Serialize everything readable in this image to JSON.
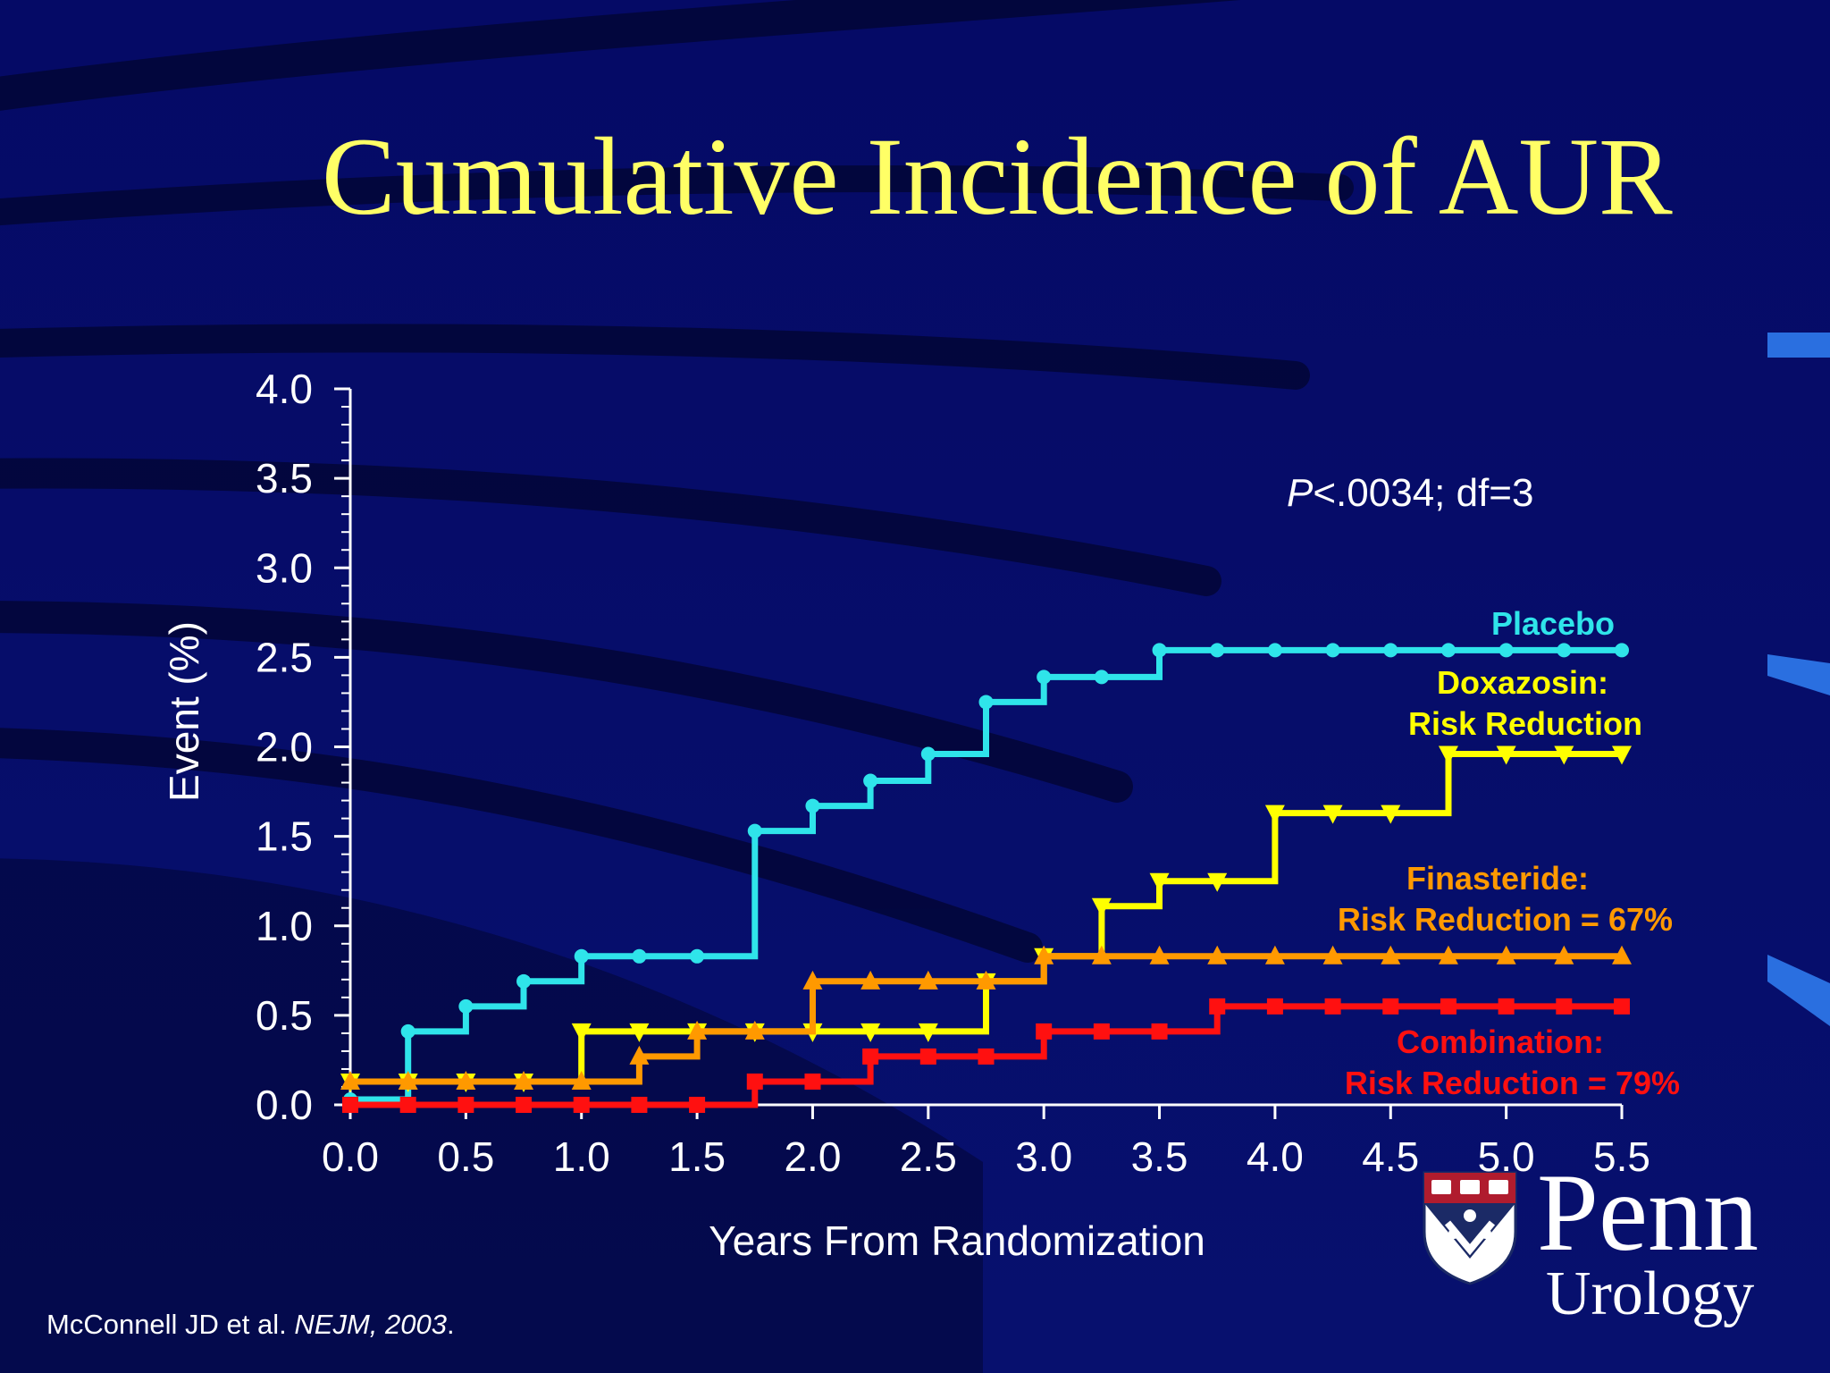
{
  "slide": {
    "title": "Cumulative Incidence of AUR",
    "citation_authors": "McConnell JD et al. ",
    "citation_journal": "NEJM, 2003",
    "citation_end": ".",
    "logo_word": "Penn",
    "logo_sub": "Urology"
  },
  "colors": {
    "background": "#05085e",
    "title": "#ffff66",
    "axis": "#ffffff",
    "placebo": "#2fe4ea",
    "doxazosin": "#ffff00",
    "finasteride": "#ff9900",
    "combination": "#ff1010"
  },
  "chart_data": {
    "type": "line",
    "step": true,
    "xlabel": "Years From Randomization",
    "ylabel": "Event (%)",
    "xlim": [
      0,
      5.5
    ],
    "ylim": [
      0,
      4.0
    ],
    "x_ticks": [
      "0.0",
      "0.5",
      "1.0",
      "1.5",
      "2.0",
      "2.5",
      "3.0",
      "3.5",
      "4.0",
      "4.5",
      "5.0",
      "5.5"
    ],
    "y_ticks": [
      "0.0",
      "0.5",
      "1.0",
      "1.5",
      "2.0",
      "2.5",
      "3.0",
      "3.5",
      "4.0"
    ],
    "annotation_p_symbol": "P",
    "annotation_p_rest": "<.0034; df=3",
    "grid": false,
    "series": [
      {
        "key": "placebo",
        "label_lines": [
          "Placebo"
        ],
        "marker": "circle",
        "color": "#2fe4ea",
        "points": [
          [
            0,
            0.03
          ],
          [
            0.25,
            0.03
          ],
          [
            0.25,
            0.41
          ],
          [
            0.5,
            0.41
          ],
          [
            0.5,
            0.55
          ],
          [
            0.75,
            0.55
          ],
          [
            0.75,
            0.69
          ],
          [
            1.0,
            0.69
          ],
          [
            1.0,
            0.83
          ],
          [
            1.25,
            0.83
          ],
          [
            1.5,
            0.83
          ],
          [
            1.75,
            0.83
          ],
          [
            1.75,
            1.53
          ],
          [
            2.0,
            1.53
          ],
          [
            2.0,
            1.67
          ],
          [
            2.25,
            1.67
          ],
          [
            2.25,
            1.81
          ],
          [
            2.5,
            1.81
          ],
          [
            2.5,
            1.96
          ],
          [
            2.75,
            1.96
          ],
          [
            2.75,
            2.25
          ],
          [
            3.0,
            2.25
          ],
          [
            3.0,
            2.39
          ],
          [
            3.25,
            2.39
          ],
          [
            3.5,
            2.39
          ],
          [
            3.5,
            2.54
          ],
          [
            3.75,
            2.54
          ],
          [
            4.0,
            2.54
          ],
          [
            4.25,
            2.54
          ],
          [
            4.5,
            2.54
          ],
          [
            4.75,
            2.54
          ],
          [
            5.0,
            2.54
          ],
          [
            5.25,
            2.54
          ],
          [
            5.5,
            2.54
          ]
        ]
      },
      {
        "key": "doxazosin",
        "label_lines": [
          "Doxazosin:",
          "Risk Reduction"
        ],
        "marker": "triangle-down",
        "color": "#ffff00",
        "points": [
          [
            0,
            0.13
          ],
          [
            0.25,
            0.13
          ],
          [
            0.5,
            0.13
          ],
          [
            0.75,
            0.13
          ],
          [
            1.0,
            0.13
          ],
          [
            1.0,
            0.41
          ],
          [
            1.25,
            0.41
          ],
          [
            1.5,
            0.41
          ],
          [
            1.75,
            0.41
          ],
          [
            2.0,
            0.41
          ],
          [
            2.25,
            0.41
          ],
          [
            2.5,
            0.41
          ],
          [
            2.75,
            0.41
          ],
          [
            2.75,
            0.69
          ],
          [
            3.0,
            0.69
          ],
          [
            3.0,
            0.83
          ],
          [
            3.25,
            0.83
          ],
          [
            3.25,
            1.11
          ],
          [
            3.5,
            1.11
          ],
          [
            3.5,
            1.25
          ],
          [
            3.75,
            1.25
          ],
          [
            4.0,
            1.25
          ],
          [
            4.0,
            1.63
          ],
          [
            4.25,
            1.63
          ],
          [
            4.5,
            1.63
          ],
          [
            4.75,
            1.63
          ],
          [
            4.75,
            1.96
          ],
          [
            5.0,
            1.96
          ],
          [
            5.25,
            1.96
          ],
          [
            5.5,
            1.96
          ]
        ]
      },
      {
        "key": "finasteride",
        "label_lines": [
          "Finasteride:",
          "Risk Reduction = 67%"
        ],
        "marker": "triangle-up",
        "color": "#ff9900",
        "points": [
          [
            0,
            0.13
          ],
          [
            0.25,
            0.13
          ],
          [
            0.5,
            0.13
          ],
          [
            0.75,
            0.13
          ],
          [
            1.0,
            0.13
          ],
          [
            1.25,
            0.13
          ],
          [
            1.25,
            0.27
          ],
          [
            1.5,
            0.27
          ],
          [
            1.5,
            0.41
          ],
          [
            1.75,
            0.41
          ],
          [
            2.0,
            0.41
          ],
          [
            2.0,
            0.69
          ],
          [
            2.25,
            0.69
          ],
          [
            2.5,
            0.69
          ],
          [
            2.75,
            0.69
          ],
          [
            3.0,
            0.69
          ],
          [
            3.0,
            0.83
          ],
          [
            3.25,
            0.83
          ],
          [
            3.5,
            0.83
          ],
          [
            3.75,
            0.83
          ],
          [
            4.0,
            0.83
          ],
          [
            4.25,
            0.83
          ],
          [
            4.5,
            0.83
          ],
          [
            4.75,
            0.83
          ],
          [
            5.0,
            0.83
          ],
          [
            5.25,
            0.83
          ],
          [
            5.5,
            0.83
          ]
        ]
      },
      {
        "key": "combination",
        "label_lines": [
          "Combination:",
          "Risk Reduction = 79%"
        ],
        "marker": "square",
        "color": "#ff1010",
        "points": [
          [
            0,
            0.0
          ],
          [
            0.25,
            0.0
          ],
          [
            0.5,
            0.0
          ],
          [
            0.75,
            0.0
          ],
          [
            1.0,
            0.0
          ],
          [
            1.25,
            0.0
          ],
          [
            1.5,
            0.0
          ],
          [
            1.75,
            0.0
          ],
          [
            1.75,
            0.13
          ],
          [
            2.0,
            0.13
          ],
          [
            2.25,
            0.13
          ],
          [
            2.25,
            0.27
          ],
          [
            2.5,
            0.27
          ],
          [
            2.75,
            0.27
          ],
          [
            3.0,
            0.27
          ],
          [
            3.0,
            0.41
          ],
          [
            3.25,
            0.41
          ],
          [
            3.5,
            0.41
          ],
          [
            3.75,
            0.41
          ],
          [
            3.75,
            0.55
          ],
          [
            4.0,
            0.55
          ],
          [
            4.25,
            0.55
          ],
          [
            4.5,
            0.55
          ],
          [
            4.75,
            0.55
          ],
          [
            5.0,
            0.55
          ],
          [
            5.25,
            0.55
          ],
          [
            5.5,
            0.55
          ]
        ]
      }
    ]
  }
}
